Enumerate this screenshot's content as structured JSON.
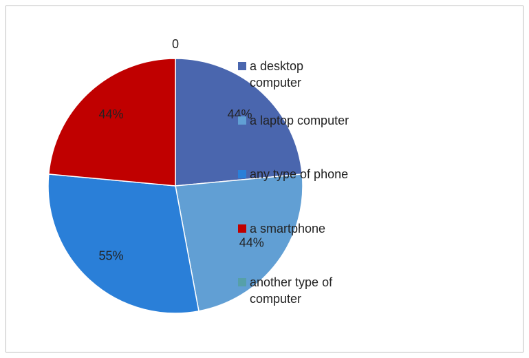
{
  "chart_data": {
    "type": "pie",
    "categories": [
      "a desktop computer",
      "a laptop computer",
      "any type of phone",
      "a smartphone",
      "another type of computer"
    ],
    "values": [
      44,
      44,
      55,
      44,
      0
    ],
    "value_labels": [
      "44%",
      "44%",
      "55%",
      "44%",
      "0"
    ],
    "colors": [
      "#4a66ae",
      "#619fd4",
      "#2a7fd8",
      "#c00000",
      "#56a0a9"
    ],
    "legend": "right"
  }
}
